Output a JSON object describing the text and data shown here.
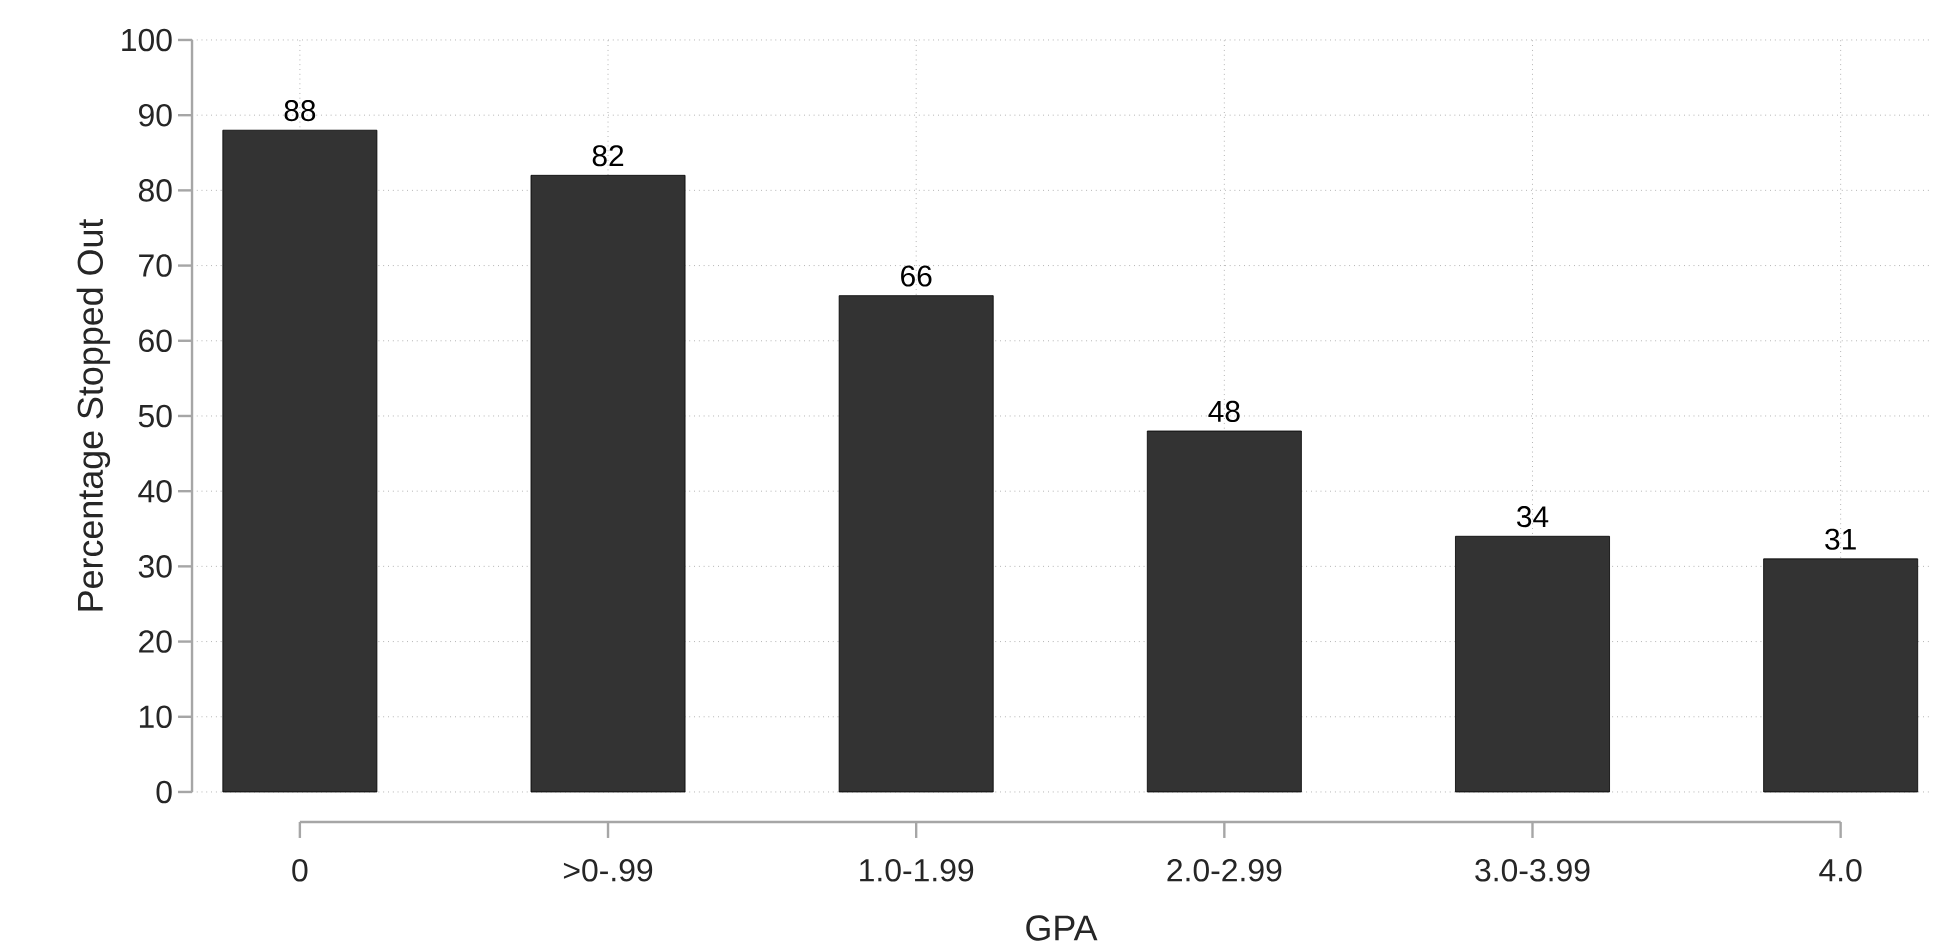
{
  "chart_data": {
    "type": "bar",
    "xlabel": "GPA",
    "ylabel": "Percentage Stopped Out",
    "categories": [
      "0",
      ">0-.99",
      "1.0-1.99",
      "2.0-2.99",
      "3.0-3.99",
      "4.0"
    ],
    "values": [
      88,
      82,
      66,
      48,
      34,
      31
    ],
    "color": "#333333",
    "ylim": [
      0,
      100
    ],
    "yticks": [
      0,
      10,
      20,
      30,
      40,
      50,
      60,
      70,
      80,
      90,
      100
    ],
    "grid": true,
    "data_labels": true
  }
}
